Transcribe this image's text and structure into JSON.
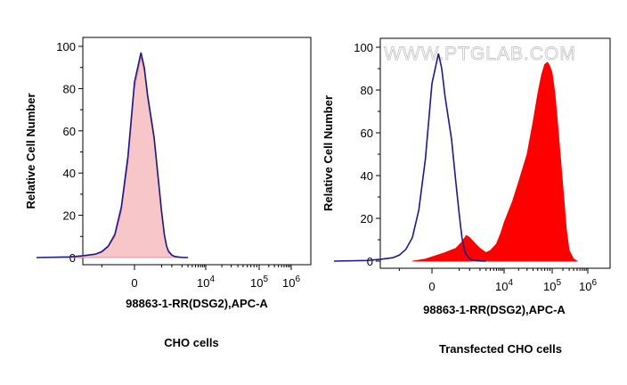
{
  "watermark": "WWW.PTGLAB.COM",
  "colors": {
    "frame": "#000000",
    "control_line": "#1a1a8c",
    "control_fill": "#f6c6c8",
    "stained_fill": "#ff0000",
    "watermark": "#c8c8c8"
  },
  "chart_data": [
    {
      "type": "area",
      "title": "",
      "xlabel": "98863-1-RR(DSG2),APC-A",
      "ylabel": "Relative Cell Number",
      "caption": "CHO cells",
      "ylim": [
        0,
        104
      ],
      "y_ticks": [
        0,
        20,
        40,
        60,
        80,
        100
      ],
      "x_ticks": [
        {
          "base": "0",
          "exp": ""
        },
        {
          "base": "10",
          "exp": "4"
        },
        {
          "base": "10",
          "exp": "5"
        },
        {
          "base": "10",
          "exp": "6"
        }
      ],
      "x_scale": "biexponential",
      "x_range": [
        -2000,
        1000000
      ],
      "series": [
        {
          "style": "filled",
          "x": [
            -1500,
            -1000,
            -800,
            -600,
            -500,
            -400,
            -300,
            -200,
            -100,
            0,
            100,
            150,
            200,
            300,
            400,
            500,
            600,
            700,
            800,
            1000,
            1200,
            1500,
            2000,
            3000
          ],
          "y": [
            0,
            0.3,
            0.7,
            1.5,
            2.5,
            5,
            10,
            22,
            45,
            80,
            95,
            88,
            75,
            55,
            35,
            20,
            10,
            5,
            2.5,
            1,
            0.5,
            0.2,
            0.1,
            0
          ]
        },
        {
          "style": "line",
          "x": [
            -1500,
            -1000,
            -800,
            -600,
            -500,
            -400,
            -300,
            -200,
            -100,
            0,
            100,
            150,
            200,
            300,
            400,
            500,
            600,
            700,
            800,
            1000,
            1200,
            1500,
            2000,
            3000
          ],
          "y": [
            0,
            0.3,
            0.8,
            1.6,
            2.8,
            5.5,
            11,
            24,
            48,
            83,
            97,
            90,
            77,
            57,
            37,
            22,
            11,
            5.5,
            3,
            1.2,
            0.6,
            0.3,
            0.1,
            0
          ]
        }
      ]
    },
    {
      "type": "area",
      "title": "",
      "xlabel": "98863-1-RR(DSG2),APC-A",
      "ylabel": "Relative Cell Number",
      "caption": "Transfected CHO cells",
      "ylim": [
        0,
        104
      ],
      "y_ticks": [
        0,
        20,
        40,
        60,
        80,
        100
      ],
      "x_ticks": [
        {
          "base": "0",
          "exp": ""
        },
        {
          "base": "10",
          "exp": "4"
        },
        {
          "base": "10",
          "exp": "5"
        },
        {
          "base": "10",
          "exp": "6"
        }
      ],
      "x_scale": "biexponential",
      "x_range": [
        -2000,
        1000000
      ],
      "series": [
        {
          "style": "filled",
          "x": [
            -300,
            -100,
            0,
            200,
            400,
            600,
            800,
            1000,
            1500,
            2000,
            3000,
            4000,
            6000,
            8000,
            10000,
            15000,
            20000,
            30000,
            40000,
            50000,
            60000,
            70000,
            80000,
            90000,
            100000,
            120000,
            150000,
            200000,
            250000,
            300000,
            400000,
            500000
          ],
          "y": [
            0,
            1,
            2,
            4,
            6,
            9,
            12,
            11,
            8,
            6,
            4,
            5,
            8,
            13,
            18,
            28,
            37,
            50,
            65,
            78,
            87,
            92,
            93,
            91,
            88,
            78,
            60,
            35,
            15,
            5,
            1,
            0
          ]
        },
        {
          "style": "line",
          "x": [
            -1500,
            -1000,
            -800,
            -600,
            -500,
            -400,
            -300,
            -200,
            -100,
            0,
            100,
            150,
            200,
            300,
            400,
            500,
            600,
            700,
            800,
            1000,
            1200,
            1500,
            2000,
            3000
          ],
          "y": [
            0,
            0.3,
            0.8,
            1.6,
            2.8,
            5.5,
            11,
            24,
            48,
            83,
            97,
            90,
            77,
            57,
            37,
            22,
            11,
            5.5,
            3,
            1.2,
            0.6,
            0.3,
            0.1,
            0
          ]
        }
      ]
    }
  ]
}
